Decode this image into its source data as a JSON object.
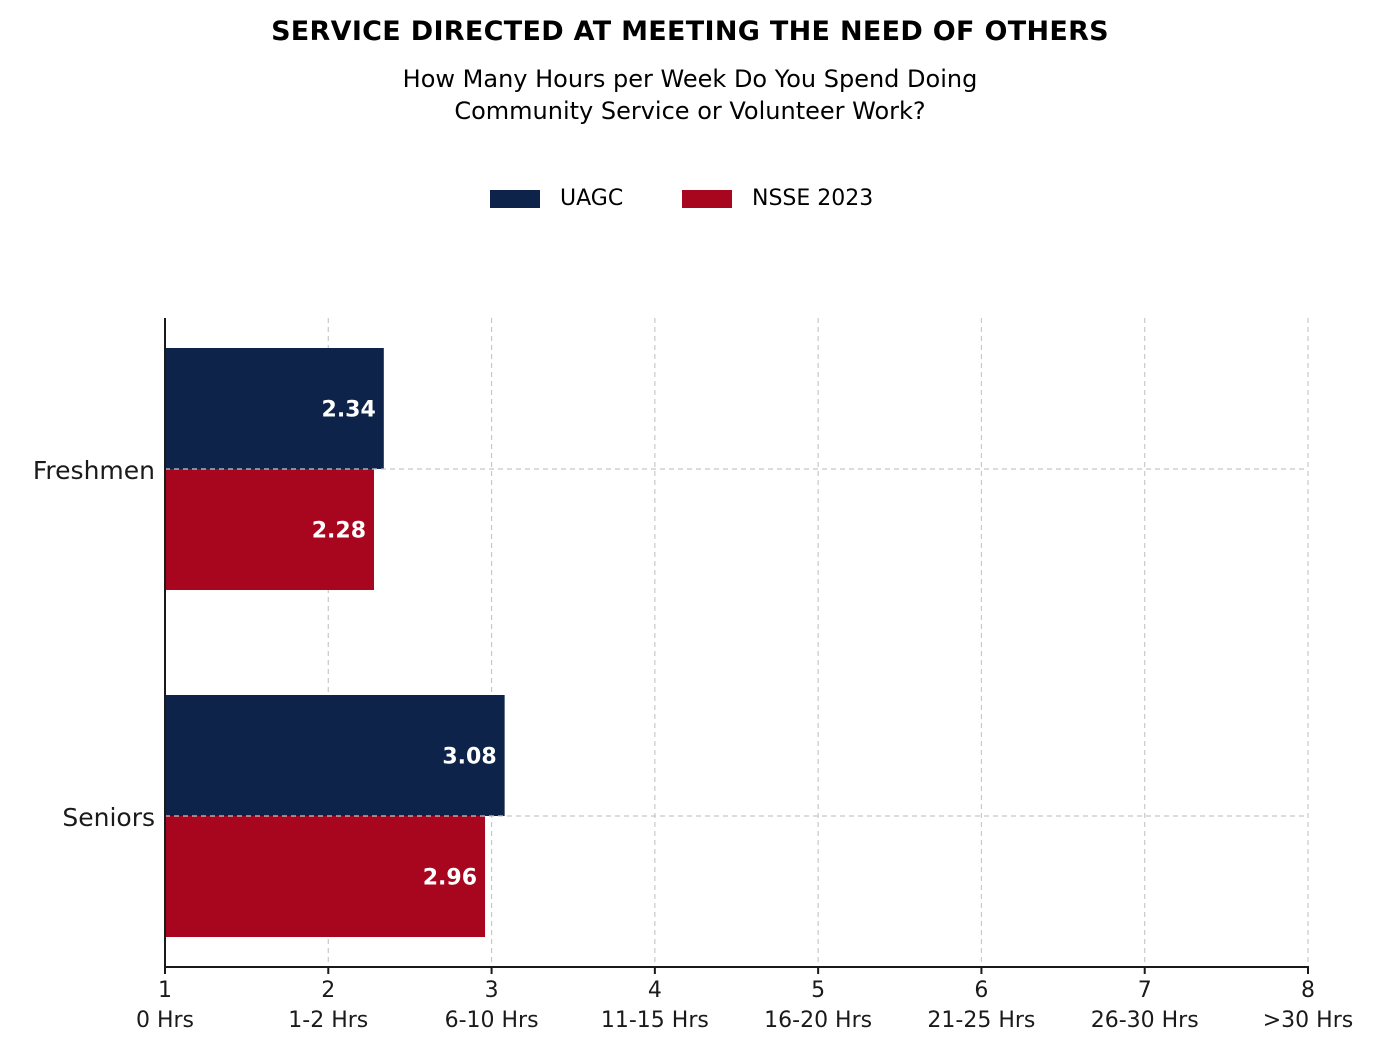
{
  "chart_data": {
    "type": "bar",
    "orientation": "horizontal",
    "title": "SERVICE DIRECTED AT MEETING THE NEED OF OTHERS",
    "subtitle_lines": [
      "How Many Hours per Week Do You Spend Doing",
      "Community Service or Volunteer Work?"
    ],
    "categories": [
      "Freshmen",
      "Seniors"
    ],
    "series": [
      {
        "name": "UAGC",
        "values": [
          2.34,
          3.08
        ],
        "color": "#0d2349"
      },
      {
        "name": "NSSE 2023",
        "values": [
          2.28,
          2.96
        ],
        "color": "#a8061f"
      }
    ],
    "data_labels": [
      [
        "2.34",
        "3.08"
      ],
      [
        "2.28",
        "2.96"
      ]
    ],
    "xlim": [
      1,
      8
    ],
    "x_ticks": [
      1,
      2,
      3,
      4,
      5,
      6,
      7,
      8
    ],
    "x_tick_labels": [
      "1",
      "2",
      "3",
      "4",
      "5",
      "6",
      "7",
      "8"
    ],
    "x_tick_sublabels": [
      "0 Hrs",
      "1-2 Hrs",
      "6-10 Hrs",
      "11-15 Hrs",
      "16-20 Hrs",
      "21-25 Hrs",
      "26-30 Hrs",
      ">30 Hrs"
    ],
    "grid": true,
    "grid_style": "dashed",
    "legend_position": "top-center"
  }
}
